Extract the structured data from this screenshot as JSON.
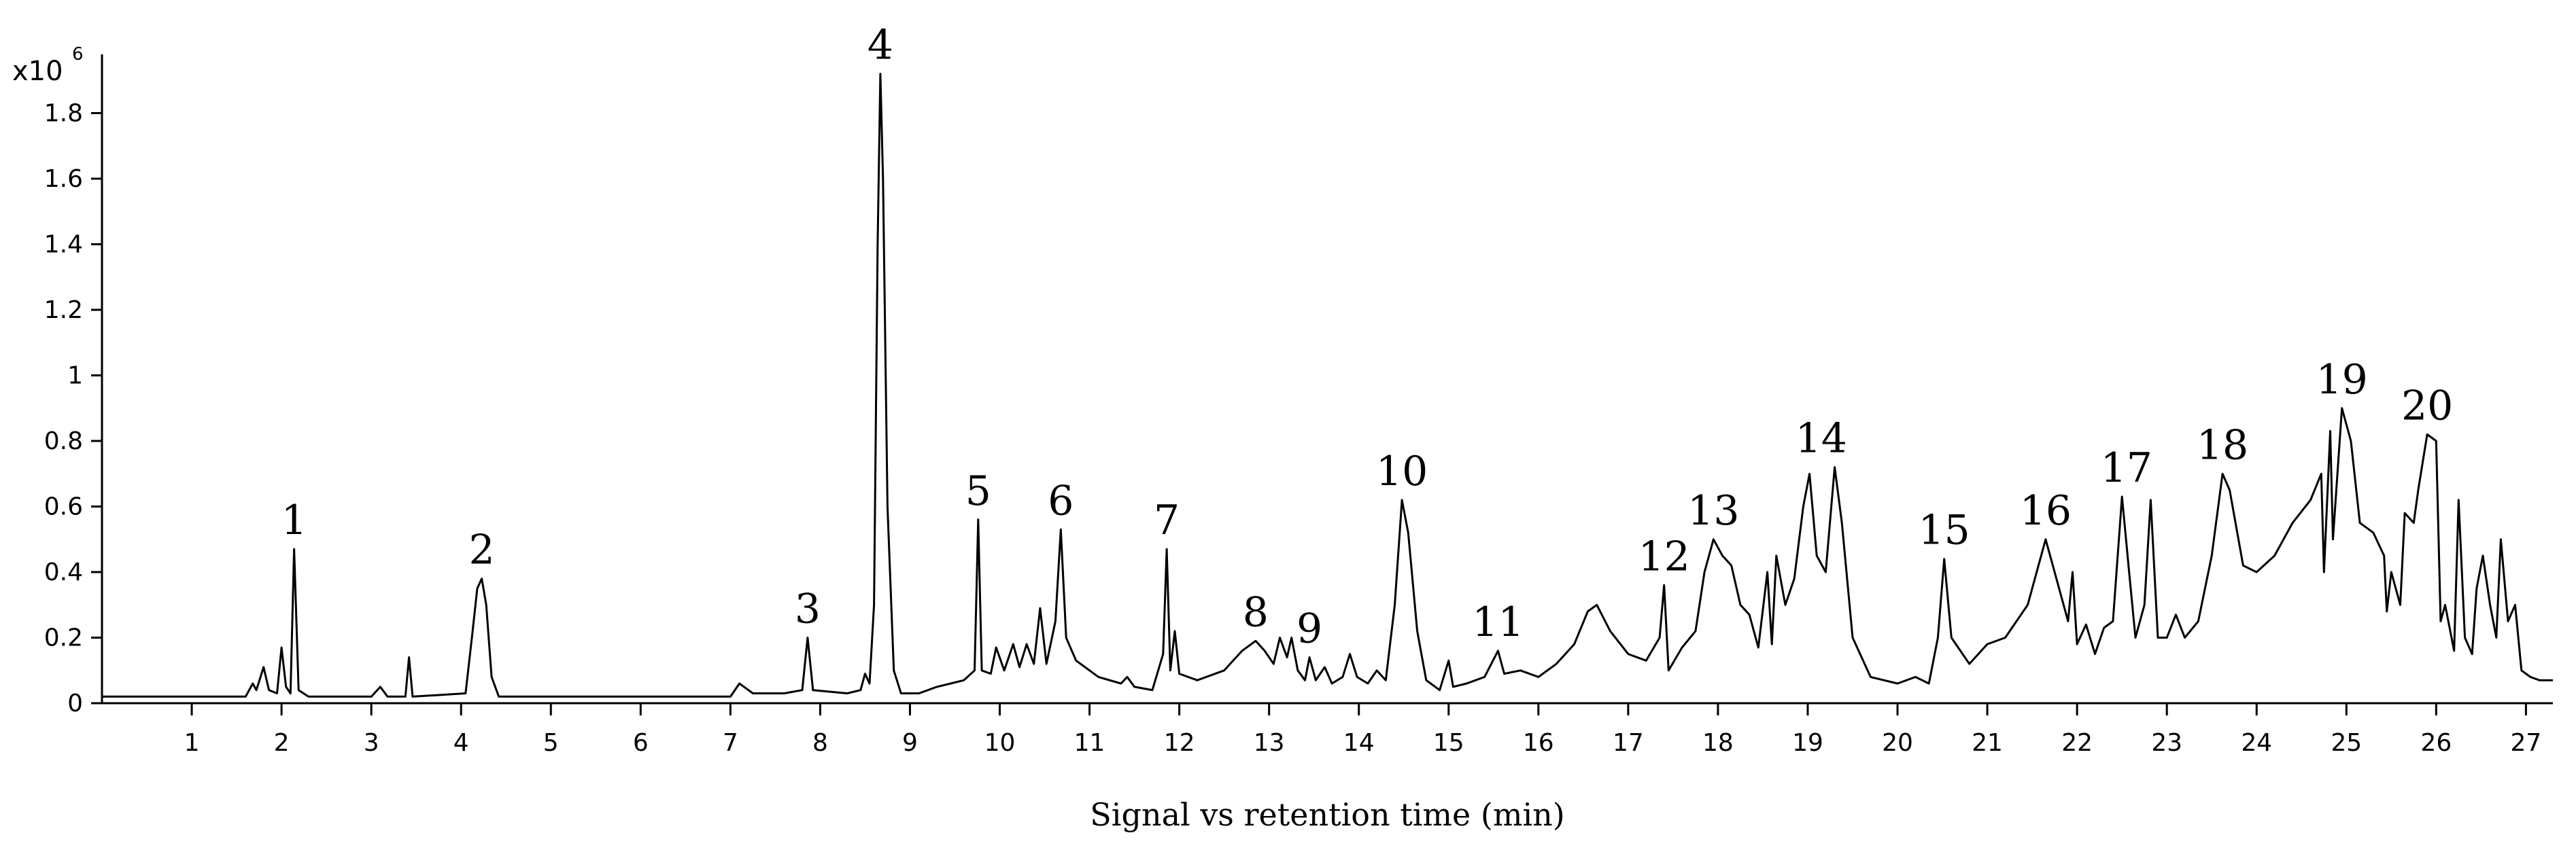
{
  "chart_data": {
    "type": "line",
    "xlabel": "Signal vs retention time (min)",
    "y_scale_label": {
      "base": "x10",
      "exponent": "6"
    },
    "xlim": [
      0,
      27.3
    ],
    "ylim": [
      0,
      2.0
    ],
    "x_ticks": [
      "1",
      "2",
      "3",
      "4",
      "5",
      "6",
      "7",
      "8",
      "9",
      "10",
      "11",
      "12",
      "13",
      "14",
      "15",
      "16",
      "17",
      "18",
      "19",
      "20",
      "21",
      "22",
      "23",
      "24",
      "25",
      "26",
      "27"
    ],
    "y_ticks": [
      "0",
      "0.2",
      "0.4",
      "0.6",
      "0.8",
      "1",
      "1.2",
      "1.4",
      "1.6",
      "1.8"
    ],
    "grid": false,
    "series": [
      {
        "points": [
          [
            0.0,
            0.02
          ],
          [
            1.6,
            0.02
          ],
          [
            1.68,
            0.06
          ],
          [
            1.72,
            0.04
          ],
          [
            1.8,
            0.11
          ],
          [
            1.86,
            0.04
          ],
          [
            1.95,
            0.03
          ],
          [
            2.0,
            0.17
          ],
          [
            2.05,
            0.05
          ],
          [
            2.1,
            0.03
          ],
          [
            2.14,
            0.47
          ],
          [
            2.19,
            0.04
          ],
          [
            2.3,
            0.02
          ],
          [
            3.0,
            0.02
          ],
          [
            3.1,
            0.05
          ],
          [
            3.18,
            0.02
          ],
          [
            3.38,
            0.02
          ],
          [
            3.42,
            0.14
          ],
          [
            3.46,
            0.02
          ],
          [
            4.05,
            0.03
          ],
          [
            4.12,
            0.2
          ],
          [
            4.18,
            0.35
          ],
          [
            4.23,
            0.38
          ],
          [
            4.28,
            0.3
          ],
          [
            4.34,
            0.08
          ],
          [
            4.42,
            0.02
          ],
          [
            7.0,
            0.02
          ],
          [
            7.1,
            0.06
          ],
          [
            7.25,
            0.03
          ],
          [
            7.6,
            0.03
          ],
          [
            7.8,
            0.04
          ],
          [
            7.86,
            0.2
          ],
          [
            7.92,
            0.04
          ],
          [
            8.3,
            0.03
          ],
          [
            8.45,
            0.04
          ],
          [
            8.5,
            0.09
          ],
          [
            8.55,
            0.06
          ],
          [
            8.6,
            0.3
          ],
          [
            8.64,
            1.4
          ],
          [
            8.67,
            1.92
          ],
          [
            8.7,
            1.6
          ],
          [
            8.75,
            0.6
          ],
          [
            8.82,
            0.1
          ],
          [
            8.9,
            0.03
          ],
          [
            9.1,
            0.03
          ],
          [
            9.3,
            0.05
          ],
          [
            9.6,
            0.07
          ],
          [
            9.72,
            0.1
          ],
          [
            9.76,
            0.56
          ],
          [
            9.8,
            0.1
          ],
          [
            9.9,
            0.09
          ],
          [
            9.96,
            0.17
          ],
          [
            10.05,
            0.1
          ],
          [
            10.15,
            0.18
          ],
          [
            10.22,
            0.11
          ],
          [
            10.3,
            0.18
          ],
          [
            10.38,
            0.12
          ],
          [
            10.45,
            0.29
          ],
          [
            10.52,
            0.12
          ],
          [
            10.62,
            0.25
          ],
          [
            10.68,
            0.53
          ],
          [
            10.74,
            0.2
          ],
          [
            10.85,
            0.13
          ],
          [
            11.1,
            0.08
          ],
          [
            11.35,
            0.06
          ],
          [
            11.42,
            0.08
          ],
          [
            11.5,
            0.05
          ],
          [
            11.7,
            0.04
          ],
          [
            11.82,
            0.15
          ],
          [
            11.86,
            0.47
          ],
          [
            11.9,
            0.1
          ],
          [
            11.95,
            0.22
          ],
          [
            12.0,
            0.09
          ],
          [
            12.2,
            0.07
          ],
          [
            12.5,
            0.1
          ],
          [
            12.7,
            0.16
          ],
          [
            12.85,
            0.19
          ],
          [
            12.95,
            0.16
          ],
          [
            13.05,
            0.12
          ],
          [
            13.12,
            0.2
          ],
          [
            13.2,
            0.14
          ],
          [
            13.25,
            0.2
          ],
          [
            13.32,
            0.1
          ],
          [
            13.4,
            0.07
          ],
          [
            13.45,
            0.14
          ],
          [
            13.52,
            0.07
          ],
          [
            13.62,
            0.11
          ],
          [
            13.7,
            0.06
          ],
          [
            13.82,
            0.08
          ],
          [
            13.9,
            0.15
          ],
          [
            13.98,
            0.08
          ],
          [
            14.1,
            0.06
          ],
          [
            14.2,
            0.1
          ],
          [
            14.3,
            0.07
          ],
          [
            14.4,
            0.3
          ],
          [
            14.48,
            0.62
          ],
          [
            14.55,
            0.52
          ],
          [
            14.65,
            0.22
          ],
          [
            14.75,
            0.07
          ],
          [
            14.9,
            0.04
          ],
          [
            15.0,
            0.13
          ],
          [
            15.05,
            0.05
          ],
          [
            15.2,
            0.06
          ],
          [
            15.4,
            0.08
          ],
          [
            15.55,
            0.16
          ],
          [
            15.62,
            0.09
          ],
          [
            15.8,
            0.1
          ],
          [
            16.0,
            0.08
          ],
          [
            16.2,
            0.12
          ],
          [
            16.4,
            0.18
          ],
          [
            16.55,
            0.28
          ],
          [
            16.65,
            0.3
          ],
          [
            16.8,
            0.22
          ],
          [
            17.0,
            0.15
          ],
          [
            17.2,
            0.13
          ],
          [
            17.35,
            0.2
          ],
          [
            17.4,
            0.36
          ],
          [
            17.45,
            0.1
          ],
          [
            17.6,
            0.17
          ],
          [
            17.75,
            0.22
          ],
          [
            17.85,
            0.4
          ],
          [
            17.95,
            0.5
          ],
          [
            18.05,
            0.45
          ],
          [
            18.15,
            0.42
          ],
          [
            18.25,
            0.3
          ],
          [
            18.35,
            0.27
          ],
          [
            18.45,
            0.17
          ],
          [
            18.55,
            0.4
          ],
          [
            18.6,
            0.18
          ],
          [
            18.65,
            0.45
          ],
          [
            18.75,
            0.3
          ],
          [
            18.85,
            0.38
          ],
          [
            18.95,
            0.6
          ],
          [
            19.02,
            0.7
          ],
          [
            19.1,
            0.45
          ],
          [
            19.2,
            0.4
          ],
          [
            19.3,
            0.72
          ],
          [
            19.38,
            0.55
          ],
          [
            19.5,
            0.2
          ],
          [
            19.7,
            0.08
          ],
          [
            20.0,
            0.06
          ],
          [
            20.2,
            0.08
          ],
          [
            20.35,
            0.06
          ],
          [
            20.45,
            0.2
          ],
          [
            20.52,
            0.44
          ],
          [
            20.6,
            0.2
          ],
          [
            20.8,
            0.12
          ],
          [
            21.0,
            0.18
          ],
          [
            21.2,
            0.2
          ],
          [
            21.45,
            0.3
          ],
          [
            21.65,
            0.5
          ],
          [
            21.75,
            0.4
          ],
          [
            21.9,
            0.25
          ],
          [
            21.95,
            0.4
          ],
          [
            22.0,
            0.18
          ],
          [
            22.1,
            0.24
          ],
          [
            22.2,
            0.15
          ],
          [
            22.3,
            0.23
          ],
          [
            22.4,
            0.25
          ],
          [
            22.5,
            0.63
          ],
          [
            22.58,
            0.4
          ],
          [
            22.65,
            0.2
          ],
          [
            22.75,
            0.3
          ],
          [
            22.82,
            0.62
          ],
          [
            22.9,
            0.2
          ],
          [
            23.0,
            0.2
          ],
          [
            23.1,
            0.27
          ],
          [
            23.2,
            0.2
          ],
          [
            23.35,
            0.25
          ],
          [
            23.5,
            0.45
          ],
          [
            23.62,
            0.7
          ],
          [
            23.7,
            0.65
          ],
          [
            23.85,
            0.42
          ],
          [
            24.0,
            0.4
          ],
          [
            24.2,
            0.45
          ],
          [
            24.4,
            0.55
          ],
          [
            24.6,
            0.62
          ],
          [
            24.72,
            0.7
          ],
          [
            24.75,
            0.4
          ],
          [
            24.82,
            0.83
          ],
          [
            24.85,
            0.5
          ],
          [
            24.95,
            0.9
          ],
          [
            25.05,
            0.8
          ],
          [
            25.15,
            0.55
          ],
          [
            25.3,
            0.52
          ],
          [
            25.42,
            0.45
          ],
          [
            25.45,
            0.28
          ],
          [
            25.5,
            0.4
          ],
          [
            25.6,
            0.3
          ],
          [
            25.65,
            0.58
          ],
          [
            25.75,
            0.55
          ],
          [
            25.8,
            0.65
          ],
          [
            25.9,
            0.82
          ],
          [
            26.0,
            0.8
          ],
          [
            26.05,
            0.25
          ],
          [
            26.1,
            0.3
          ],
          [
            26.2,
            0.16
          ],
          [
            26.25,
            0.62
          ],
          [
            26.32,
            0.2
          ],
          [
            26.4,
            0.15
          ],
          [
            26.45,
            0.35
          ],
          [
            26.52,
            0.45
          ],
          [
            26.6,
            0.3
          ],
          [
            26.67,
            0.2
          ],
          [
            26.72,
            0.5
          ],
          [
            26.8,
            0.25
          ],
          [
            26.88,
            0.3
          ],
          [
            26.95,
            0.1
          ],
          [
            27.05,
            0.08
          ],
          [
            27.15,
            0.07
          ],
          [
            27.3,
            0.07
          ]
        ]
      }
    ],
    "peaks": [
      {
        "label": "1",
        "x": 2.14,
        "y": 0.47
      },
      {
        "label": "2",
        "x": 4.23,
        "y": 0.38
      },
      {
        "label": "3",
        "x": 7.86,
        "y": 0.2
      },
      {
        "label": "4",
        "x": 8.67,
        "y": 1.92
      },
      {
        "label": "5",
        "x": 9.76,
        "y": 0.56
      },
      {
        "label": "6",
        "x": 10.68,
        "y": 0.53
      },
      {
        "label": "7",
        "x": 11.86,
        "y": 0.47
      },
      {
        "label": "8",
        "x": 12.85,
        "y": 0.19
      },
      {
        "label": "9",
        "x": 13.45,
        "y": 0.14
      },
      {
        "label": "10",
        "x": 14.48,
        "y": 0.62
      },
      {
        "label": "11",
        "x": 15.55,
        "y": 0.16
      },
      {
        "label": "12",
        "x": 17.4,
        "y": 0.36
      },
      {
        "label": "13",
        "x": 17.95,
        "y": 0.5
      },
      {
        "label": "14",
        "x": 19.15,
        "y": 0.72
      },
      {
        "label": "15",
        "x": 20.52,
        "y": 0.44
      },
      {
        "label": "16",
        "x": 21.65,
        "y": 0.5
      },
      {
        "label": "17",
        "x": 22.55,
        "y": 0.63
      },
      {
        "label": "18",
        "x": 23.62,
        "y": 0.7
      },
      {
        "label": "19",
        "x": 24.95,
        "y": 0.9
      },
      {
        "label": "20",
        "x": 25.9,
        "y": 0.82
      }
    ]
  }
}
